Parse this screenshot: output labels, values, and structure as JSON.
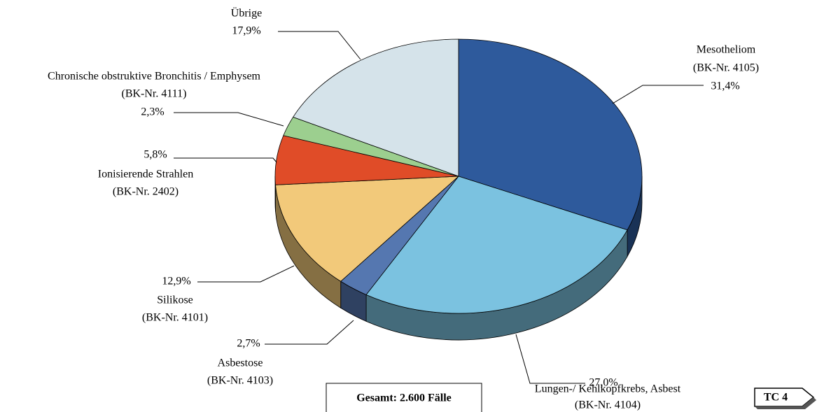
{
  "chart_data": {
    "type": "pie",
    "categories": [
      "Mesotheliom",
      "Lungen-/ Kehlkopfkrebs, Asbest",
      "Asbestose",
      "Silikose",
      "Ionisierende Strahlen",
      "Chronische obstruktive Bronchitis / Emphysem",
      "Übrige"
    ],
    "codes": [
      "(BK-Nr. 4105)",
      "(BK-Nr. 4104)",
      "(BK-Nr. 4103)",
      "(BK-Nr. 4101)",
      "(BK-Nr. 2402)",
      "(BK-Nr. 4111)",
      null
    ],
    "values": [
      31.4,
      27.0,
      2.7,
      12.9,
      5.8,
      2.3,
      17.9
    ],
    "value_labels": [
      "31,4%",
      "27,0%",
      "2,7%",
      "12,9%",
      "5,8%",
      "2,3%",
      "17,9%"
    ],
    "colors": [
      "#2e5a9c",
      "#7bc2e0",
      "#5577b0",
      "#f2c97a",
      "#e04c28",
      "#9ccf8f",
      "#d5e3ea"
    ],
    "annotation": "Gesamt: 2.600 Fälle",
    "badge": "TC 4"
  }
}
